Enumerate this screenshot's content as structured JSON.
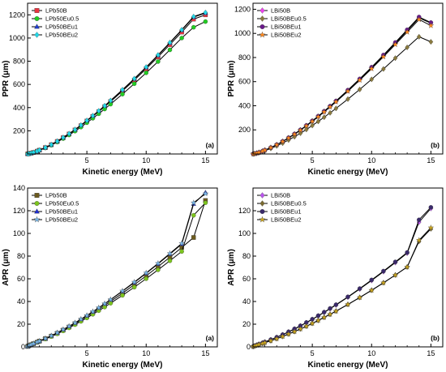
{
  "chart_data": [
    {
      "type": "line",
      "panel_label": "(a)",
      "xlabel": "Kinetic energy (MeV)",
      "ylabel": "PPR (μm)",
      "xlim": [
        0,
        16
      ],
      "ylim": [
        0,
        1300
      ],
      "xticks": [
        5,
        10,
        15
      ],
      "yticks": [
        200,
        400,
        600,
        800,
        1000,
        1200
      ],
      "legend_position": "top-left",
      "x": [
        0.01,
        0.1,
        0.3,
        0.5,
        0.8,
        1,
        1.5,
        2,
        2.5,
        3,
        3.5,
        4,
        4.5,
        5,
        5.5,
        6,
        6.5,
        7,
        8,
        9,
        10,
        11,
        12,
        13,
        14,
        15
      ],
      "series": [
        {
          "name": "LPb50B",
          "color": "#e8343f",
          "marker": "square",
          "values": [
            1,
            2.4,
            7,
            13,
            24,
            33,
            55,
            80,
            108,
            140,
            172,
            207,
            244,
            284,
            324,
            365,
            408,
            452,
            543,
            637,
            735,
            837,
            943,
            1051,
            1163,
            1200
          ]
        },
        {
          "name": "LPb50Eu0.5",
          "color": "#22cc22",
          "marker": "circle",
          "values": [
            1,
            2.3,
            6.8,
            12.5,
            23,
            31.5,
            52,
            76,
            103,
            133,
            164,
            197,
            232,
            270,
            308,
            347,
            388,
            430,
            516,
            606,
            700,
            797,
            898,
            1000,
            1093,
            1142
          ]
        },
        {
          "name": "LPb50BEu1",
          "color": "#1f3fd0",
          "marker": "triangle",
          "values": [
            1,
            2.4,
            7.1,
            13.2,
            24.4,
            33.5,
            56,
            81,
            110,
            142,
            175,
            210,
            248,
            288,
            329,
            371,
            415,
            459,
            552,
            647,
            746,
            850,
            957,
            1067,
            1180,
            1215
          ]
        },
        {
          "name": "LPb50BEu2",
          "color": "#22d8e8",
          "marker": "diamond",
          "values": [
            1,
            2.4,
            7.1,
            13.3,
            24.5,
            33.6,
            56.2,
            81.5,
            110.5,
            142.5,
            175.8,
            211,
            249,
            289,
            330,
            372,
            416,
            461,
            554,
            650,
            750,
            854,
            961,
            1071,
            1185,
            1220
          ]
        }
      ]
    },
    {
      "type": "line",
      "panel_label": "(b)",
      "xlabel": "Kinetic energy (MeV)",
      "ylabel": "PPR (μm)",
      "xlim": [
        0,
        16
      ],
      "ylim": [
        0,
        1250
      ],
      "xticks": [
        5,
        10,
        15
      ],
      "yticks": [
        200,
        400,
        600,
        800,
        1000,
        1200
      ],
      "legend_position": "top-left",
      "x": [
        0.01,
        0.1,
        0.3,
        0.5,
        0.8,
        1,
        1.5,
        2,
        2.5,
        3,
        3.5,
        4,
        4.5,
        5,
        5.5,
        6,
        6.5,
        7,
        8,
        9,
        10,
        11,
        12,
        13,
        14,
        15
      ],
      "series": [
        {
          "name": "LBi50B",
          "color": "#ee44ee",
          "marker": "diamond",
          "values": [
            1,
            2.3,
            6.8,
            12.6,
            23.2,
            32,
            53,
            77,
            104,
            134,
            165,
            199,
            235,
            273,
            312,
            352,
            394,
            437,
            525,
            618,
            715,
            815,
            918,
            1022,
            1128,
            1085
          ]
        },
        {
          "name": "LBi50BEu0.5",
          "color": "#8a7a3e",
          "marker": "diamond",
          "values": [
            1,
            2,
            5.9,
            10.9,
            20,
            27.5,
            46,
            67,
            90,
            116,
            143,
            172,
            203,
            236,
            270,
            305,
            341,
            378,
            455,
            535,
            619,
            705,
            795,
            884,
            972,
            930
          ]
        },
        {
          "name": "LBi50BEu1",
          "color": "#6a1a8a",
          "marker": "circle",
          "values": [
            1,
            2.3,
            6.9,
            12.7,
            23.4,
            32.2,
            53.5,
            77.6,
            105,
            135,
            166.5,
            200.5,
            237,
            275,
            314,
            355,
            397,
            440,
            530,
            623,
            720,
            821,
            925,
            1030,
            1136,
            1090
          ]
        },
        {
          "name": "LBi50BEu2",
          "color": "#ff8a20",
          "marker": "star",
          "values": [
            1,
            2.3,
            6.8,
            12.5,
            23,
            31.7,
            52.6,
            76.3,
            103,
            132.7,
            163.6,
            197,
            232.5,
            270,
            308.5,
            348.5,
            390,
            432.5,
            520,
            612,
            707,
            806,
            908,
            1011,
            1115,
            1065
          ]
        }
      ]
    },
    {
      "type": "line",
      "panel_label": "(a)",
      "xlabel": "Kinetic energy (MeV)",
      "ylabel": "APR (μm)",
      "xlim": [
        0,
        16
      ],
      "ylim": [
        0,
        140
      ],
      "xticks": [
        5,
        10,
        15
      ],
      "yticks": [
        0,
        20,
        40,
        60,
        80,
        100,
        120,
        140
      ],
      "legend_position": "top-left",
      "x": [
        0.01,
        0.1,
        0.3,
        0.5,
        0.8,
        1,
        1.5,
        2,
        2.5,
        3,
        3.5,
        4,
        4.5,
        5,
        5.5,
        6,
        6.5,
        7,
        8,
        9,
        10,
        11,
        12,
        13,
        14,
        15
      ],
      "series": [
        {
          "name": "LPb50B",
          "color": "#6b5a1e",
          "marker": "square",
          "values": [
            0.4,
            1,
            1.9,
            2.8,
            4.1,
            5,
            7.2,
            9.5,
            12,
            14.7,
            17.5,
            20.4,
            23.5,
            26.6,
            29.9,
            33.2,
            36.6,
            40.1,
            47.3,
            54.8,
            62.6,
            70.7,
            79,
            87.6,
            96.4,
            129
          ]
        },
        {
          "name": "LPb50Eu0.5",
          "color": "#7cc41e",
          "marker": "circle",
          "values": [
            0.4,
            1,
            1.8,
            2.7,
            3.9,
            4.8,
            6.9,
            9.1,
            11.5,
            14.1,
            16.8,
            19.6,
            22.5,
            25.5,
            28.7,
            31.9,
            35.1,
            38.5,
            45.4,
            52.6,
            60.1,
            67.9,
            75.9,
            84.1,
            116,
            127
          ]
        },
        {
          "name": "LPb50BEu1",
          "color": "#1f2fd0",
          "marker": "triangle",
          "values": [
            0.4,
            1,
            2,
            2.9,
            4.2,
            5.1,
            7.4,
            9.8,
            12.4,
            15.2,
            18.1,
            21.1,
            24.3,
            27.5,
            30.9,
            34.3,
            37.9,
            41.5,
            49,
            56.7,
            64.8,
            73.1,
            81.8,
            90.6,
            126,
            136
          ]
        },
        {
          "name": "LPb50BEu2",
          "color": "#7ab8e8",
          "marker": "star",
          "values": [
            0.4,
            1,
            2,
            2.9,
            4.2,
            5.1,
            7.4,
            9.8,
            12.5,
            15.3,
            18.2,
            21.2,
            24.4,
            27.7,
            31.1,
            34.5,
            38.1,
            41.7,
            49.3,
            57.1,
            65.2,
            73.6,
            82.3,
            91.2,
            127,
            135
          ]
        }
      ]
    },
    {
      "type": "line",
      "panel_label": "(b)",
      "xlabel": "Kinetic energy (MeV)",
      "ylabel": "APR (μm)",
      "xlim": [
        0,
        16
      ],
      "ylim": [
        0,
        140
      ],
      "xticks": [
        5,
        10,
        15
      ],
      "yticks": [
        0,
        20,
        40,
        60,
        80,
        100,
        120
      ],
      "legend_position": "top-left",
      "x": [
        0.01,
        0.1,
        0.3,
        0.5,
        0.8,
        1,
        1.5,
        2,
        2.5,
        3,
        3.5,
        4,
        4.5,
        5,
        5.5,
        6,
        6.5,
        7,
        8,
        9,
        10,
        11,
        12,
        13,
        14,
        15
      ],
      "series": [
        {
          "name": "LBi50B",
          "color": "#bb55ee",
          "marker": "diamond",
          "values": [
            0.3,
            0.8,
            1.6,
            2.4,
            3.5,
            4.3,
            6.3,
            8.4,
            10.7,
            13.2,
            15.8,
            18.5,
            21.3,
            24.2,
            27.3,
            30.4,
            33.6,
            36.9,
            43.8,
            51,
            58.5,
            66.3,
            74.3,
            82.6,
            110,
            122
          ]
        },
        {
          "name": "LBi50BEu0.5",
          "color": "#7a6a30",
          "marker": "diamond",
          "values": [
            0.3,
            0.7,
            1.4,
            2.1,
            3,
            3.7,
            5.4,
            7.2,
            9.2,
            11.3,
            13.5,
            15.8,
            18.2,
            20.7,
            23.3,
            26,
            28.7,
            31.5,
            37.4,
            43.5,
            49.9,
            56.5,
            63.3,
            70.4,
            93,
            104
          ]
        },
        {
          "name": "LBi50BEu1",
          "color": "#3a2a6a",
          "marker": "circle",
          "values": [
            0.3,
            0.8,
            1.6,
            2.4,
            3.5,
            4.3,
            6.4,
            8.5,
            10.8,
            13.3,
            15.9,
            18.6,
            21.5,
            24.4,
            27.5,
            30.6,
            33.9,
            37.2,
            44.1,
            51.4,
            59,
            66.8,
            74.9,
            83.2,
            112,
            123
          ]
        },
        {
          "name": "LBi50BEu2",
          "color": "#c9a420",
          "marker": "star",
          "values": [
            0.3,
            0.7,
            1.4,
            2.1,
            3,
            3.7,
            5.4,
            7.2,
            9.2,
            11.3,
            13.5,
            15.8,
            18.2,
            20.7,
            23.3,
            26,
            28.7,
            31.5,
            37.4,
            43.5,
            49.9,
            56.5,
            63.3,
            70.4,
            94,
            105
          ]
        }
      ]
    }
  ]
}
